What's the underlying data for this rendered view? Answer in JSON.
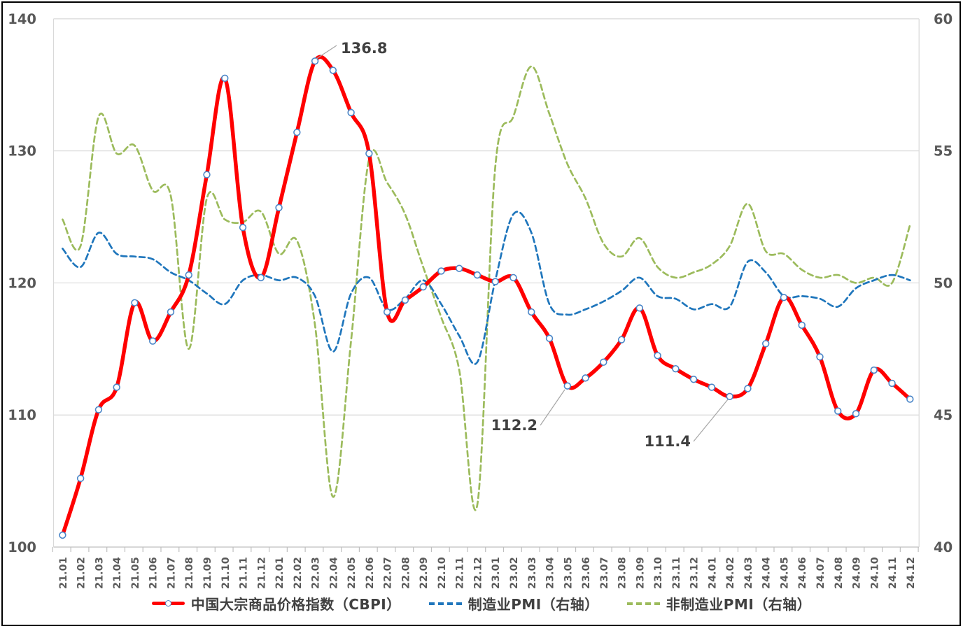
{
  "chart_data": {
    "type": "line",
    "title": "",
    "categories": [
      "21.01",
      "21.02",
      "21.03",
      "21.04",
      "21.05",
      "21.06",
      "21.07",
      "21.08",
      "21.09",
      "21.10",
      "21.11",
      "21.12",
      "22.01",
      "22.02",
      "22.03",
      "22.04",
      "22.05",
      "22.06",
      "22.07",
      "22.08",
      "22.09",
      "22.10",
      "22.11",
      "22.12",
      "23.01",
      "23.02",
      "23.03",
      "23.04",
      "23.05",
      "23.06",
      "23.07",
      "23.08",
      "23.09",
      "23.10",
      "23.11",
      "23.12",
      "24.01",
      "24.02",
      "24.03",
      "24.04",
      "24.05",
      "24.06",
      "24.07",
      "24.08",
      "24.09",
      "24.10",
      "24.11",
      "24.12"
    ],
    "series": [
      {
        "name": "中国大宗商品价格指数（CBPI）",
        "axis": "left",
        "color": "#FF0000",
        "line_style": "solid",
        "marker": "circle",
        "values": [
          100.9,
          105.2,
          110.4,
          112.1,
          118.5,
          115.6,
          117.8,
          120.6,
          128.2,
          135.5,
          124.2,
          120.4,
          125.7,
          131.4,
          136.8,
          136.1,
          132.9,
          129.8,
          117.8,
          118.7,
          119.7,
          120.9,
          121.1,
          120.6,
          120.1,
          120.4,
          117.8,
          115.8,
          112.2,
          112.8,
          114.0,
          115.7,
          118.1,
          114.5,
          113.5,
          112.7,
          112.1,
          111.4,
          112.0,
          115.4,
          118.9,
          116.8,
          114.4,
          110.3,
          110.1,
          113.4,
          112.4,
          111.2
        ]
      },
      {
        "name": "制造业PMI（右轴）",
        "axis": "right",
        "color": "#1F76BC",
        "line_style": "dashed",
        "marker": "none",
        "values": [
          51.3,
          50.6,
          51.9,
          51.1,
          51.0,
          50.9,
          50.4,
          50.1,
          49.6,
          49.2,
          50.1,
          50.3,
          50.1,
          50.2,
          49.5,
          47.4,
          49.6,
          50.2,
          49.0,
          49.4,
          50.1,
          49.2,
          48.0,
          47.0,
          50.1,
          52.6,
          51.9,
          49.2,
          48.8,
          49.0,
          49.3,
          49.7,
          50.2,
          49.5,
          49.4,
          49.0,
          49.2,
          49.1,
          50.8,
          50.4,
          49.5,
          49.5,
          49.4,
          49.1,
          49.8,
          50.1,
          50.3,
          50.1
        ]
      },
      {
        "name": "非制造业PMI（右轴）",
        "axis": "right",
        "color": "#9CBB5C",
        "line_style": "dashed",
        "marker": "none",
        "values": [
          52.4,
          51.4,
          56.3,
          54.9,
          55.2,
          53.5,
          53.3,
          47.5,
          53.2,
          52.4,
          52.3,
          52.7,
          51.1,
          51.6,
          48.4,
          41.9,
          47.8,
          54.7,
          53.8,
          52.6,
          50.6,
          48.7,
          46.7,
          41.6,
          54.4,
          56.3,
          58.2,
          56.4,
          54.5,
          53.2,
          51.5,
          51.0,
          51.7,
          50.6,
          50.2,
          50.4,
          50.7,
          51.4,
          53.0,
          51.2,
          51.1,
          50.5,
          50.2,
          50.3,
          50.0,
          50.2,
          50.0,
          52.2
        ]
      }
    ],
    "left_axis": {
      "min": 100,
      "max": 140,
      "ticks": [
        140,
        130,
        120,
        110,
        100
      ]
    },
    "right_axis": {
      "min": 40,
      "max": 60,
      "ticks": [
        60,
        55,
        50,
        45,
        40
      ]
    },
    "grid": true,
    "legend_position": "bottom",
    "annotations": [
      {
        "text": "136.8",
        "category": "22.03",
        "series": "中国大宗商品价格指数（CBPI）"
      },
      {
        "text": "112.2",
        "category": "23.05",
        "series": "中国大宗商品价格指数（CBPI）"
      },
      {
        "text": "111.4",
        "category": "24.02",
        "series": "中国大宗商品价格指数（CBPI）"
      }
    ]
  },
  "colors": {
    "background": "#FFFFFF",
    "border": "#000000",
    "grid": "#D9D9D9",
    "axis": "#BFBFBF",
    "tick_label": "#595959",
    "annotation_text": "#404040",
    "leader_line": "#A6A6A6",
    "marker_ring": "#4A86C8",
    "marker_fill": "#FFFFFF"
  }
}
